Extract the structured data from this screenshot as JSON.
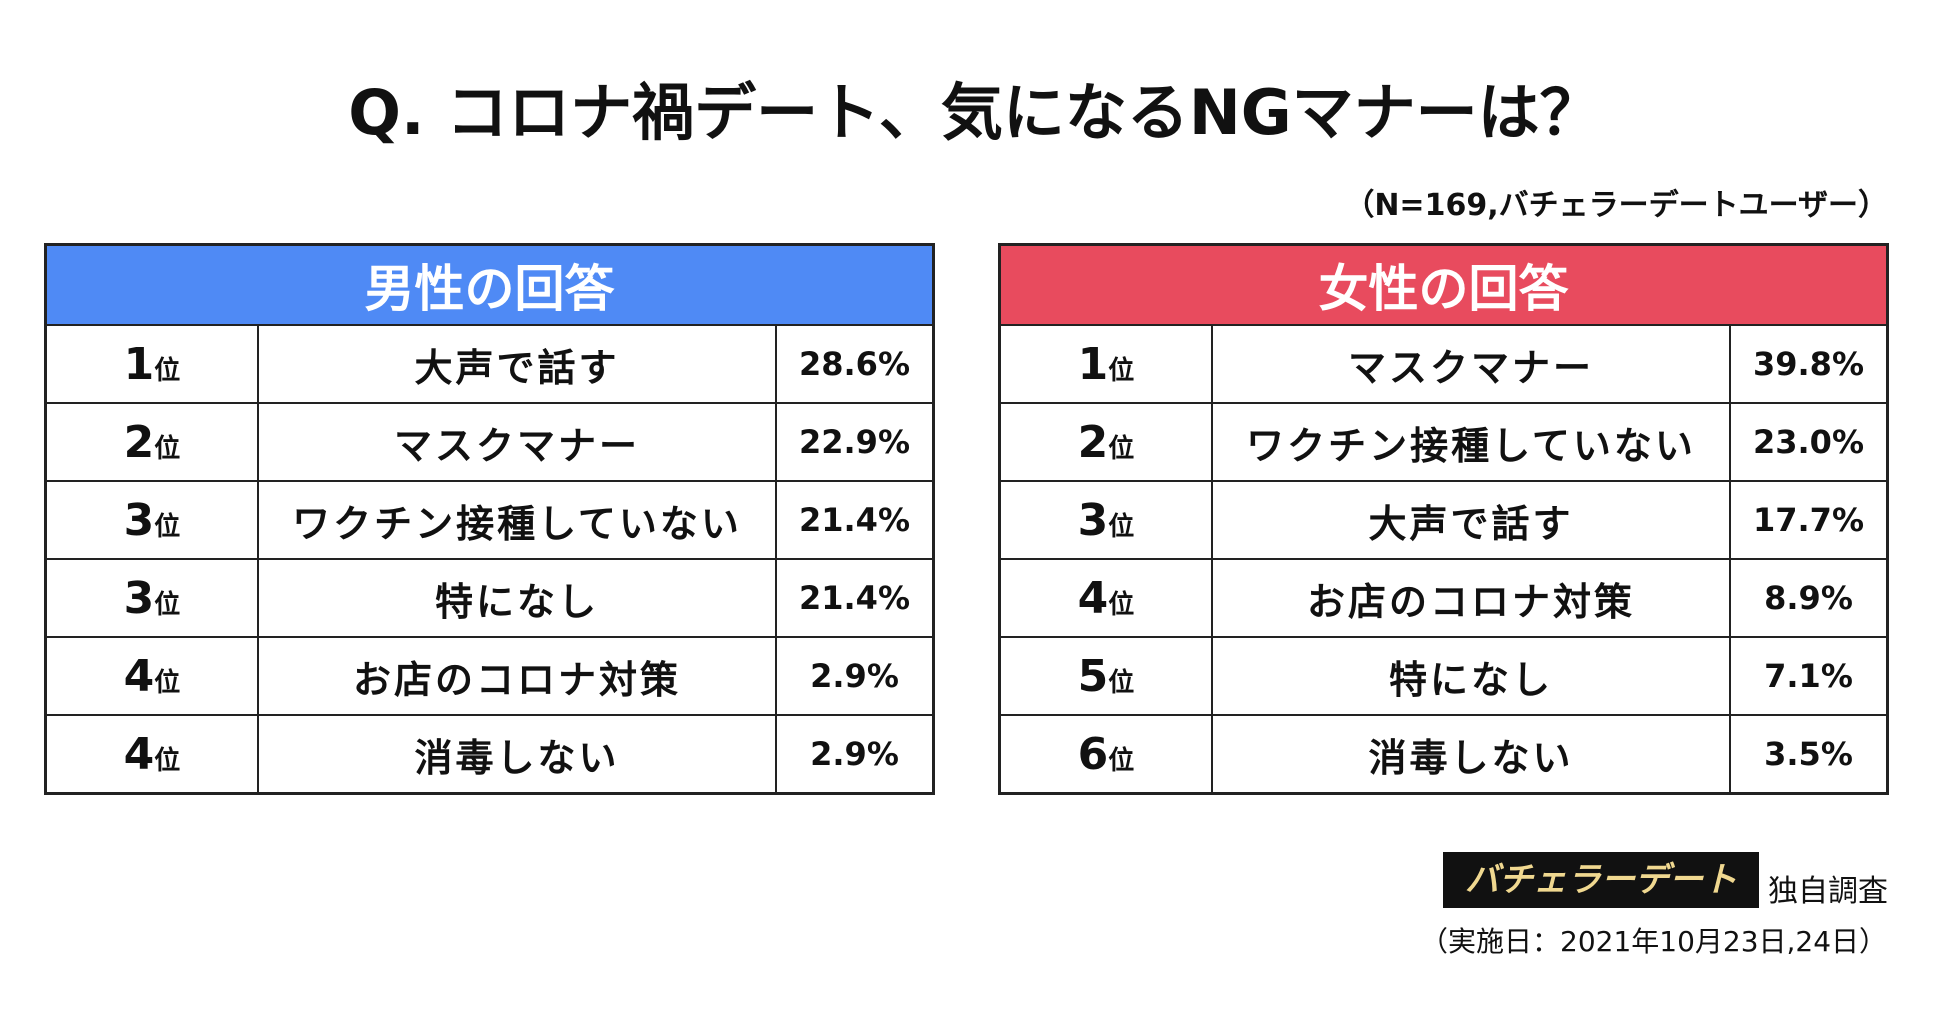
{
  "header": {
    "title": "Q. コロナ禍デート、気になるNGマナーは？",
    "note": "（N=169,バチェラーデートユーザー）"
  },
  "tables": [
    {
      "title": "男性の回答",
      "rows": [
        {
          "rank": "1",
          "unit": "位",
          "item": "大声で話す",
          "percent": "28.6%"
        },
        {
          "rank": "2",
          "unit": "位",
          "item": "マスクマナー",
          "percent": "22.9%"
        },
        {
          "rank": "3",
          "unit": "位",
          "item": "ワクチン接種していない",
          "percent": "21.4%"
        },
        {
          "rank": "3",
          "unit": "位",
          "item": "特になし",
          "percent": "21.4%"
        },
        {
          "rank": "4",
          "unit": "位",
          "item": "お店のコロナ対策",
          "percent": "2.9%"
        },
        {
          "rank": "4",
          "unit": "位",
          "item": "消毒しない",
          "percent": "2.9%"
        }
      ]
    },
    {
      "title": "女性の回答",
      "rows": [
        {
          "rank": "1",
          "unit": "位",
          "item": "マスクマナー",
          "percent": "39.8%"
        },
        {
          "rank": "2",
          "unit": "位",
          "item": "ワクチン接種していない",
          "percent": "23.0%"
        },
        {
          "rank": "3",
          "unit": "位",
          "item": "大声で話す",
          "percent": "17.7%"
        },
        {
          "rank": "4",
          "unit": "位",
          "item": "お店のコロナ対策",
          "percent": "8.9%"
        },
        {
          "rank": "5",
          "unit": "位",
          "item": "特になし",
          "percent": "7.1%"
        },
        {
          "rank": "6",
          "unit": "位",
          "item": "消毒しない",
          "percent": "3.5%"
        }
      ]
    }
  ],
  "footer": {
    "logo": "バチェラーデート",
    "label": "独自調査",
    "date": "（実施日：2021年10月23日,24日）"
  }
}
